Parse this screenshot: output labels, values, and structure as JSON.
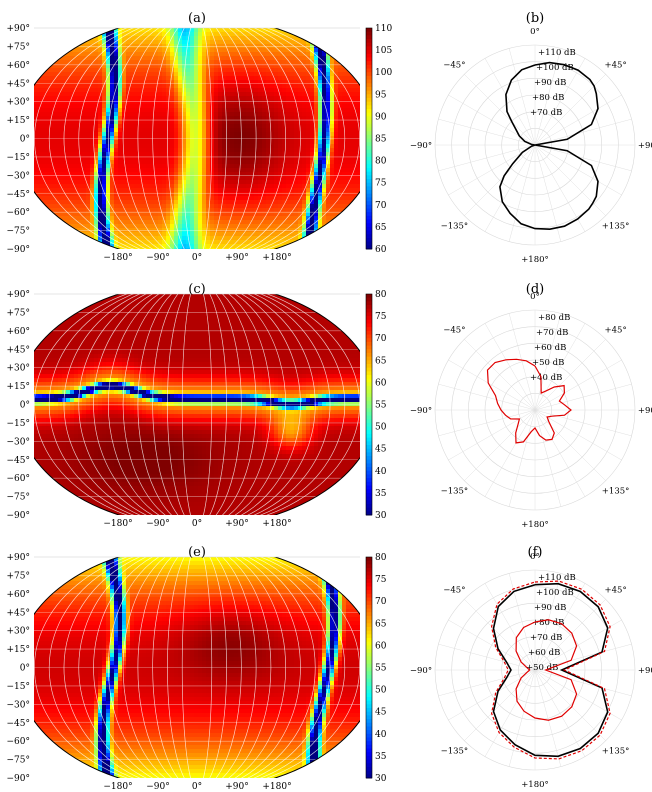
{
  "chart_data": [
    {
      "panel": "(a)",
      "type": "heatmap",
      "projection": "elliptical",
      "lat_ticks": [
        "+90°",
        "+75°",
        "+60°",
        "+45°",
        "+30°",
        "+15°",
        "0°",
        "−15°",
        "−30°",
        "−45°",
        "−60°",
        "−75°",
        "−90°"
      ],
      "lon_ticks": [
        "−180°",
        "−90°",
        "0°",
        "+90°",
        "+180°"
      ],
      "colorbar_ticks": [
        110,
        105,
        100,
        95,
        90,
        85,
        80,
        75,
        70,
        65,
        60
      ],
      "colorbar_range": [
        60,
        110
      ],
      "colormap": "jet",
      "minima_lines_lon": [
        -150,
        -63,
        135
      ],
      "maxima_regions": [
        "left lobe",
        "centre lobe",
        "right edge"
      ]
    },
    {
      "panel": "(b)",
      "type": "line",
      "polar": true,
      "angle_labels": [
        "0°",
        "+45°",
        "+90°",
        "+135°",
        "+180°",
        "−135°",
        "−90°",
        "−45°"
      ],
      "radial_labels": [
        "+110 dB",
        "+100 dB",
        "+90 dB",
        "+80 dB",
        "+70 dB"
      ],
      "radial_range_db": [
        60,
        115
      ],
      "series": [
        {
          "color": "#000000",
          "style": "solid",
          "angles_deg": [
            0,
            10,
            20,
            30,
            40,
            45,
            50,
            60,
            70,
            80,
            90,
            100,
            110,
            120,
            130,
            135,
            140,
            150,
            160,
            170,
            180,
            190,
            200,
            210,
            220,
            225,
            230,
            240,
            250,
            260,
            270,
            280,
            290,
            300,
            310,
            315,
            320,
            330,
            340,
            350
          ],
          "db": [
            104,
            106,
            107,
            107.5,
            107,
            106,
            104,
            100,
            93,
            78,
            60,
            78,
            93,
            100,
            104,
            105,
            106,
            107,
            107.5,
            107,
            106,
            104,
            100,
            96,
            90,
            84,
            76,
            68,
            62,
            60,
            60,
            62,
            66,
            70,
            74,
            78,
            84,
            92,
            98,
            102
          ]
        }
      ]
    },
    {
      "panel": "(c)",
      "type": "heatmap",
      "projection": "elliptical",
      "lat_ticks": [
        "+90°",
        "+75°",
        "+60°",
        "+45°",
        "+30°",
        "+15°",
        "0°",
        "−15°",
        "−30°",
        "−45°",
        "−60°",
        "−75°",
        "−90°"
      ],
      "lon_ticks": [
        "−180°",
        "−90°",
        "0°",
        "+90°",
        "+180°"
      ],
      "colorbar_ticks": [
        80,
        75,
        70,
        65,
        60,
        55,
        50,
        45,
        40,
        35,
        30
      ],
      "colorbar_range": [
        30,
        80
      ],
      "colormap": "jet",
      "minima_line_lat": "near 0° with bump to +20° at −90°"
    },
    {
      "panel": "(d)",
      "type": "line",
      "polar": true,
      "angle_labels": [
        "0°",
        "+45°",
        "+90°",
        "+135°",
        "+180°",
        "−135°",
        "−90°",
        "−45°"
      ],
      "radial_labels": [
        "+80 dB",
        "+70 dB",
        "+60 dB",
        "+50 dB",
        "+40 dB"
      ],
      "radial_range_db": [
        35,
        85
      ],
      "series": [
        {
          "color": "#e00000",
          "style": "solid",
          "angles_deg": [
            0,
            10,
            20,
            30,
            40,
            50,
            60,
            70,
            80,
            90,
            100,
            110,
            120,
            130,
            140,
            150,
            160,
            170,
            180,
            190,
            200,
            210,
            220,
            230,
            240,
            250,
            260,
            270,
            280,
            290,
            300,
            310,
            320,
            330,
            340,
            350
          ],
          "db": [
            57,
            52,
            44,
            46,
            50,
            54,
            52,
            48,
            50,
            53,
            50,
            44,
            42,
            44,
            50,
            52,
            51,
            48,
            44,
            46,
            52,
            54,
            50,
            46,
            44,
            48,
            50,
            52,
            54,
            56,
            62,
            66,
            66,
            64,
            62,
            60
          ]
        }
      ]
    },
    {
      "panel": "(e)",
      "type": "heatmap",
      "projection": "elliptical",
      "lat_ticks": [
        "+90°",
        "+75°",
        "+60°",
        "+45°",
        "+30°",
        "+15°",
        "0°",
        "−15°",
        "−30°",
        "−45°",
        "−60°",
        "−75°",
        "−90°"
      ],
      "lon_ticks": [
        "−180°",
        "−90°",
        "0°",
        "+90°",
        "+180°"
      ],
      "colorbar_ticks": [
        80,
        75,
        70,
        65,
        60,
        55,
        50,
        45,
        40,
        35,
        30
      ],
      "colorbar_range": [
        30,
        80
      ],
      "colormap": "jet",
      "minima_lines_lon": [
        -150,
        -63,
        135
      ]
    },
    {
      "panel": "(f)",
      "type": "line",
      "polar": true,
      "angle_labels": [
        "0°",
        "+45°",
        "+90°",
        "+135°",
        "+180°",
        "−135°",
        "−90°",
        "−45°"
      ],
      "radial_labels": [
        "+110 dB",
        "+100 dB",
        "+90 dB",
        "+80 dB",
        "+70 dB",
        "+60 dB",
        "+50 dB"
      ],
      "radial_range_db": [
        40,
        115
      ],
      "series": [
        {
          "color": "#000000",
          "style": "solid",
          "angles_deg": [
            0,
            15,
            30,
            45,
            60,
            75,
            90,
            105,
            120,
            135,
            150,
            165,
            180,
            195,
            210,
            225,
            240,
            255,
            270,
            285,
            300,
            315,
            330,
            345
          ],
          "db": [
            104,
            107,
            108,
            107,
            103,
            92,
            60,
            92,
            103,
            107,
            108,
            107,
            104,
            98,
            92,
            84,
            72,
            62,
            58,
            62,
            72,
            84,
            95,
            101
          ]
        },
        {
          "color": "#e00000",
          "style": "dashed",
          "angles_deg": [
            0,
            15,
            30,
            45,
            60,
            75,
            90,
            105,
            120,
            135,
            150,
            165,
            180,
            195,
            210,
            225,
            240,
            255,
            270,
            285,
            300,
            315,
            330,
            345
          ],
          "db": [
            106,
            109,
            110,
            109,
            105,
            94,
            62,
            94,
            105,
            109,
            110,
            109,
            106,
            100,
            94,
            86,
            74,
            64,
            60,
            64,
            74,
            86,
            97,
            103
          ]
        },
        {
          "color": "#e00000",
          "style": "solid",
          "angles_deg": [
            0,
            15,
            30,
            45,
            60,
            75,
            90,
            105,
            120,
            135,
            150,
            165,
            180,
            195,
            210,
            225,
            240,
            255,
            270,
            285,
            300,
            315,
            330,
            345
          ],
          "db": [
            76,
            79,
            80,
            79,
            76,
            68,
            48,
            68,
            76,
            79,
            80,
            79,
            76,
            72,
            67,
            60,
            52,
            46,
            44,
            46,
            52,
            60,
            68,
            73
          ]
        }
      ]
    }
  ]
}
